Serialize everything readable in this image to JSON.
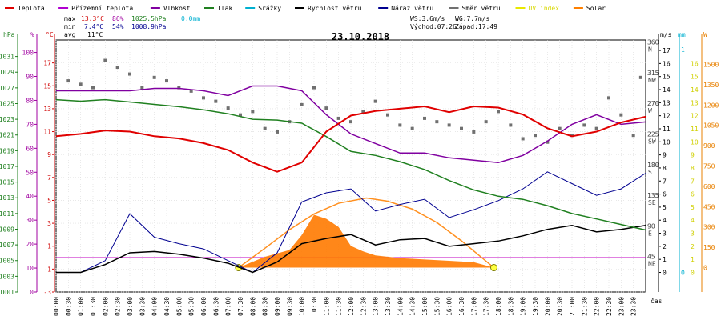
{
  "legend": [
    {
      "label": "Teplota",
      "color": "#e00000"
    },
    {
      "label": "Přízemní teplota",
      "color": "#b000d0"
    },
    {
      "label": "Vlhkost",
      "color": "#8000a0"
    },
    {
      "label": "Tlak",
      "color": "#208020"
    },
    {
      "label": "Srážky",
      "color": "#00b0d0"
    },
    {
      "label": "Rychlost větru",
      "color": "#000000"
    },
    {
      "label": "Náraz větru",
      "color": "#000090"
    },
    {
      "label": "Směr větru",
      "color": "#707070"
    },
    {
      "label": "UV index",
      "color": "#e8e800"
    },
    {
      "label": "Solar",
      "color": "#ff8000"
    }
  ],
  "stats": {
    "max_label": "max",
    "min_label": "min",
    "avg_label": "avg",
    "max_temp": "13.3°C",
    "max_hum": "86%",
    "max_press": "1025.5hPa",
    "max_rain": "0.0mm",
    "min_temp": "7.4°C",
    "min_hum": "54%",
    "min_press": "1008.9hPa",
    "avg_temp": "11°C",
    "ws": "WS:3.6m/s",
    "wg": "WG:7.7m/s",
    "sunrise": "Východ:07:26",
    "sunset": "Západ:17:49"
  },
  "chart_data": {
    "type": "line",
    "title": "23.10.2018",
    "axis_units": {
      "hpa": "hPa",
      "percent": "%",
      "celsius": "°C",
      "ms": "m/s",
      "mm": "mm",
      "w": "W"
    },
    "xlabel": "čas",
    "x_ticks": [
      "00:00",
      "00:30",
      "01:00",
      "01:30",
      "02:00",
      "02:30",
      "03:00",
      "03:30",
      "04:00",
      "04:30",
      "05:00",
      "05:30",
      "06:00",
      "06:30",
      "07:00",
      "07:30",
      "08:00",
      "08:30",
      "09:00",
      "09:30",
      "10:00",
      "10:30",
      "11:00",
      "11:30",
      "12:00",
      "12:30",
      "13:00",
      "13:30",
      "14:00",
      "14:30",
      "15:00",
      "15:30",
      "16:00",
      "16:30",
      "17:00",
      "17:30",
      "18:00",
      "18:30",
      "19:00",
      "19:30",
      "20:00",
      "20:30",
      "21:00",
      "21:30",
      "22:00",
      "22:30",
      "23:00",
      "23:30"
    ],
    "pressure_ticks": [
      1001,
      1003,
      1005,
      1007,
      1009,
      1011,
      1013,
      1015,
      1017,
      1019,
      1021,
      1023,
      1025,
      1027,
      1029,
      1031
    ],
    "humidity_ticks": [
      0,
      10,
      20,
      30,
      40,
      50,
      60,
      70,
      80,
      90,
      100
    ],
    "temp_ticks": [
      -3,
      -1,
      1,
      3,
      5,
      7,
      9,
      11,
      13,
      15,
      17
    ],
    "ylim_temp": [
      -3,
      19
    ],
    "wind_ticks": [
      0,
      1,
      2,
      3,
      4,
      5,
      6,
      7,
      8,
      9,
      10,
      11,
      12,
      13,
      14,
      15,
      16,
      17
    ],
    "direction_ticks": [
      {
        "deg": 45,
        "dir": "NE"
      },
      {
        "deg": 90,
        "dir": "E"
      },
      {
        "deg": 135,
        "dir": "SE"
      },
      {
        "deg": 180,
        "dir": "S"
      },
      {
        "deg": 225,
        "dir": "SW"
      },
      {
        "deg": 270,
        "dir": "W"
      },
      {
        "deg": 315,
        "dir": "NW"
      },
      {
        "deg": 360,
        "dir": "N"
      }
    ],
    "rain_ticks": [
      0,
      1
    ],
    "uv_ticks": [
      0,
      1,
      2,
      3,
      4,
      5,
      6,
      7,
      8,
      9,
      10,
      11,
      12,
      13,
      14,
      15,
      16
    ],
    "solar_ticks": [
      0,
      150,
      300,
      450,
      600,
      750,
      900,
      1050,
      1200,
      1350,
      1500
    ],
    "series": [
      {
        "name": "Teplota",
        "axis": "temp",
        "color": "#e00000",
        "x": [
          0,
          1,
          2,
          3,
          4,
          5,
          6,
          7,
          8,
          9,
          10,
          11,
          12,
          13,
          14,
          15,
          16,
          17,
          18,
          19,
          20,
          21,
          22,
          23,
          24
        ],
        "y": [
          10.6,
          10.8,
          11.1,
          11.0,
          10.6,
          10.4,
          10.0,
          9.4,
          8.3,
          7.5,
          8.3,
          11.0,
          12.4,
          12.8,
          13.0,
          13.2,
          12.7,
          13.2,
          13.1,
          12.5,
          11.3,
          10.6,
          11.0,
          11.8,
          12.3
        ]
      },
      {
        "name": "Vlhkost",
        "axis": "humidity",
        "color": "#8000a0",
        "x": [
          0,
          1,
          2,
          3,
          4,
          5,
          6,
          7,
          8,
          9,
          10,
          11,
          12,
          13,
          14,
          15,
          16,
          17,
          18,
          19,
          20,
          21,
          22,
          23,
          24
        ],
        "y": [
          84,
          84,
          84,
          84,
          85,
          85,
          84,
          82,
          86,
          86,
          84,
          74,
          66,
          62,
          58,
          58,
          56,
          55,
          54,
          57,
          63,
          70,
          74,
          70,
          71
        ]
      },
      {
        "name": "Tlak",
        "axis": "pressure",
        "color": "#208020",
        "x": [
          0,
          1,
          2,
          3,
          4,
          5,
          6,
          7,
          8,
          9,
          10,
          11,
          12,
          13,
          14,
          15,
          16,
          17,
          18,
          19,
          20,
          21,
          22,
          23,
          24
        ],
        "y": [
          1025.5,
          1025.3,
          1025.5,
          1025.2,
          1024.9,
          1024.6,
          1024.2,
          1023.7,
          1023.0,
          1022.9,
          1022.5,
          1020.8,
          1018.9,
          1018.4,
          1017.6,
          1016.6,
          1015.2,
          1014.0,
          1013.2,
          1012.8,
          1012.0,
          1011.0,
          1010.3,
          1009.6,
          1008.9
        ]
      },
      {
        "name": "Rychlost větru",
        "axis": "wind",
        "color": "#000000",
        "x": [
          0,
          1,
          2,
          3,
          4,
          5,
          6,
          7,
          8,
          9,
          10,
          11,
          12,
          13,
          14,
          15,
          16,
          17,
          18,
          19,
          20,
          21,
          22,
          23,
          24
        ],
        "y": [
          0,
          0,
          0.6,
          1.5,
          1.6,
          1.4,
          1.1,
          0.7,
          0,
          0.8,
          2.2,
          2.6,
          2.9,
          2.1,
          2.5,
          2.6,
          2.0,
          2.2,
          2.4,
          2.8,
          3.3,
          3.6,
          3.1,
          3.3,
          3.6
        ]
      },
      {
        "name": "Náraz větru",
        "axis": "wind",
        "color": "#000090",
        "x": [
          0,
          1,
          2,
          3,
          4,
          5,
          6,
          7,
          8,
          9,
          10,
          11,
          12,
          13,
          14,
          15,
          16,
          17,
          18,
          19,
          20,
          21,
          22,
          23,
          24
        ],
        "y": [
          0,
          0,
          0.9,
          4.5,
          2.7,
          2.2,
          1.8,
          0.9,
          0,
          1.5,
          5.4,
          6.1,
          6.4,
          4.7,
          5.2,
          5.6,
          4.2,
          4.8,
          5.5,
          6.4,
          7.7,
          6.8,
          5.9,
          6.4,
          7.6
        ]
      },
      {
        "name": "Srážky",
        "axis": "rain",
        "color": "#00b0d0",
        "x": [
          0,
          24
        ],
        "y": [
          0,
          0
        ]
      },
      {
        "name": "UV index",
        "axis": "uv",
        "color": "#e8e800",
        "x": [
          0,
          24
        ],
        "y": [
          0,
          0
        ]
      },
      {
        "name": "Solar",
        "axis": "solar",
        "color": "#ff8000",
        "x": [
          7.43,
          8.5,
          9.5,
          10.5,
          11.5,
          12.63,
          13.5,
          14.5,
          15.5,
          16.5,
          17.82
        ],
        "y": [
          0,
          143,
          280,
          396,
          475,
          514,
          490,
          432,
          333,
          198,
          0
        ]
      },
      {
        "name": "Solar",
        "axis": "solar",
        "color": "#ff8000",
        "x": [
          7.43,
          8.5,
          9.5,
          10.0,
          10.5,
          11.0,
          11.5,
          12.0,
          12.5,
          13.0,
          14.0,
          15.0,
          16.0,
          17.0,
          17.82
        ],
        "y": [
          0,
          80,
          130,
          240,
          390,
          360,
          300,
          160,
          120,
          90,
          70,
          60,
          50,
          40,
          0
        ]
      },
      {
        "name": "Směr větru",
        "axis": "direction",
        "x": [
          0.5,
          1.0,
          1.5,
          2.0,
          2.5,
          3.0,
          3.5,
          4.0,
          4.5,
          5.0,
          5.5,
          6.0,
          6.5,
          7.0,
          7.5,
          8.0,
          8.5,
          9.0,
          9.5,
          10.0,
          10.5,
          11.0,
          11.5,
          12.0,
          12.5,
          13.0,
          13.5,
          14.0,
          14.5,
          15.0,
          15.5,
          16.0,
          16.5,
          17.0,
          17.5,
          18.0,
          18.5,
          19.0,
          19.5,
          20.0,
          20.5,
          21.0,
          21.5,
          22.0,
          22.5,
          23.0,
          23.5,
          23.8
        ],
        "y": [
          310,
          305,
          300,
          340,
          330,
          320,
          300,
          315,
          310,
          300,
          295,
          285,
          280,
          270,
          260,
          265,
          240,
          235,
          250,
          275,
          300,
          270,
          255,
          250,
          265,
          280,
          260,
          245,
          240,
          255,
          250,
          245,
          240,
          235,
          250,
          265,
          245,
          225,
          230,
          220,
          240,
          230,
          245,
          240,
          285,
          260,
          230,
          315
        ]
      }
    ]
  }
}
